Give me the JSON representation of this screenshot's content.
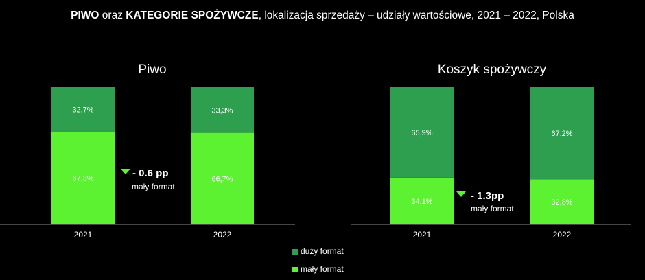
{
  "title": {
    "bold1": "PIWO",
    "text1": " oraz ",
    "bold2": "KATEGORIE SPOŻYWCZE",
    "text2": ", lokalizacja sprzedaży – udziały wartościowe, 2021 – 2022, Polska"
  },
  "colors": {
    "duzy": "#2e9e4f",
    "maly": "#5cf231",
    "arrow": "#5cf231"
  },
  "chart_data": [
    {
      "type": "bar",
      "stacked": true,
      "title": "Piwo",
      "categories": [
        "2021",
        "2022"
      ],
      "series": [
        {
          "name": "mały format",
          "values": [
            67.3,
            66.7
          ],
          "labels": [
            "67,3%",
            "66,7%"
          ]
        },
        {
          "name": "duży format",
          "values": [
            32.7,
            33.3
          ],
          "labels": [
            "32,7%",
            "33,3%"
          ]
        }
      ],
      "ylim": [
        0,
        100
      ],
      "annotation": {
        "value": "- 0.6 pp",
        "text": "mały format"
      }
    },
    {
      "type": "bar",
      "stacked": true,
      "title": "Koszyk spożywczy",
      "categories": [
        "2021",
        "2022"
      ],
      "series": [
        {
          "name": "mały format",
          "values": [
            34.1,
            32.8
          ],
          "labels": [
            "34,1%",
            "32,8%"
          ]
        },
        {
          "name": "duży format",
          "values": [
            65.9,
            67.2
          ],
          "labels": [
            "65,9%",
            "67,2%"
          ]
        }
      ],
      "ylim": [
        0,
        100
      ],
      "annotation": {
        "value": "- 1.3pp",
        "text": "mały format"
      }
    }
  ],
  "legend": [
    {
      "name": "duży format"
    },
    {
      "name": "mały format"
    }
  ]
}
